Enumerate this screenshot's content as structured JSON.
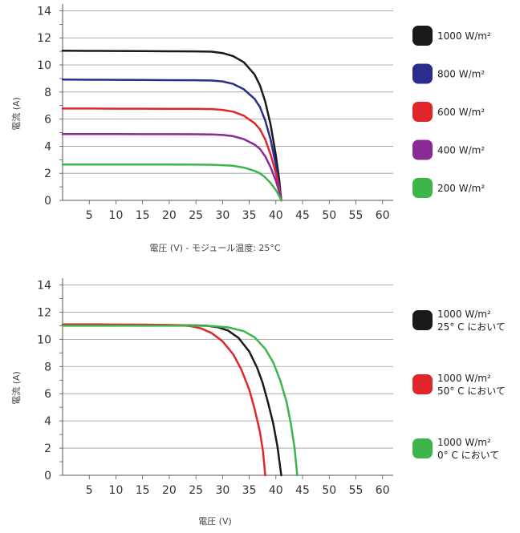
{
  "chart_data": [
    {
      "type": "line",
      "title": "",
      "xlabel": "電圧 (V) - モジュール温度: 25°C",
      "ylabel": "電流 (A)",
      "xlim": [
        0,
        62
      ],
      "ylim": [
        0,
        14.5
      ],
      "xticks": [
        5,
        10,
        15,
        20,
        25,
        30,
        35,
        40,
        45,
        50,
        55,
        60
      ],
      "yticks": [
        0,
        2,
        4,
        6,
        8,
        10,
        12,
        14
      ],
      "grid": "horizontal",
      "legend_position": "right",
      "series": [
        {
          "name": "1000 W/m²",
          "name_lines": [
            "1000 W/m²"
          ],
          "color": "#1a1a1a",
          "points": [
            [
              0,
              11.05
            ],
            [
              5,
              11.04
            ],
            [
              10,
              11.03
            ],
            [
              15,
              11.02
            ],
            [
              20,
              11.01
            ],
            [
              25,
              11.0
            ],
            [
              28,
              10.98
            ],
            [
              30,
              10.88
            ],
            [
              32,
              10.65
            ],
            [
              34,
              10.2
            ],
            [
              36,
              9.3
            ],
            [
              37,
              8.5
            ],
            [
              38,
              7.3
            ],
            [
              39,
              5.6
            ],
            [
              40,
              3.3
            ],
            [
              40.6,
              1.6
            ],
            [
              41,
              0
            ]
          ]
        },
        {
          "name": "800 W/m²",
          "name_lines": [
            "800 W/m²"
          ],
          "color": "#2a2d8a",
          "points": [
            [
              0,
              8.92
            ],
            [
              5,
              8.91
            ],
            [
              10,
              8.9
            ],
            [
              15,
              8.89
            ],
            [
              20,
              8.88
            ],
            [
              25,
              8.87
            ],
            [
              28,
              8.85
            ],
            [
              30,
              8.78
            ],
            [
              32,
              8.6
            ],
            [
              34,
              8.2
            ],
            [
              36,
              7.5
            ],
            [
              37,
              6.9
            ],
            [
              38,
              5.9
            ],
            [
              39,
              4.5
            ],
            [
              40,
              2.6
            ],
            [
              40.6,
              1.2
            ],
            [
              41,
              0
            ]
          ]
        },
        {
          "name": "600 W/m²",
          "name_lines": [
            "600 W/m²"
          ],
          "color": "#e0262b",
          "points": [
            [
              0,
              6.78
            ],
            [
              5,
              6.78
            ],
            [
              10,
              6.77
            ],
            [
              15,
              6.77
            ],
            [
              20,
              6.76
            ],
            [
              25,
              6.76
            ],
            [
              28,
              6.74
            ],
            [
              30,
              6.68
            ],
            [
              32,
              6.55
            ],
            [
              34,
              6.25
            ],
            [
              36,
              5.7
            ],
            [
              37,
              5.25
            ],
            [
              38,
              4.5
            ],
            [
              39,
              3.4
            ],
            [
              40,
              2.0
            ],
            [
              40.6,
              0.9
            ],
            [
              41,
              0
            ]
          ]
        },
        {
          "name": "400 W/m²",
          "name_lines": [
            "400 W/m²"
          ],
          "color": "#8a2a94",
          "points": [
            [
              0,
              4.9
            ],
            [
              5,
              4.9
            ],
            [
              10,
              4.9
            ],
            [
              15,
              4.89
            ],
            [
              20,
              4.89
            ],
            [
              25,
              4.88
            ],
            [
              28,
              4.87
            ],
            [
              30,
              4.83
            ],
            [
              32,
              4.74
            ],
            [
              34,
              4.52
            ],
            [
              36,
              4.12
            ],
            [
              37,
              3.8
            ],
            [
              38,
              3.25
            ],
            [
              39,
              2.45
            ],
            [
              40,
              1.45
            ],
            [
              40.6,
              0.65
            ],
            [
              41,
              0
            ]
          ]
        },
        {
          "name": "200 W/m²",
          "name_lines": [
            "200 W/m²"
          ],
          "color": "#3db54a",
          "points": [
            [
              0,
              2.65
            ],
            [
              5,
              2.65
            ],
            [
              10,
              2.65
            ],
            [
              15,
              2.65
            ],
            [
              20,
              2.65
            ],
            [
              25,
              2.64
            ],
            [
              28,
              2.63
            ],
            [
              30,
              2.6
            ],
            [
              32,
              2.55
            ],
            [
              34,
              2.42
            ],
            [
              36,
              2.18
            ],
            [
              37,
              2.0
            ],
            [
              38,
              1.7
            ],
            [
              39,
              1.28
            ],
            [
              40,
              0.75
            ],
            [
              40.6,
              0.33
            ],
            [
              41,
              0
            ]
          ]
        }
      ]
    },
    {
      "type": "line",
      "title": "",
      "xlabel": "電圧 (V)",
      "ylabel": "電流 (A)",
      "xlim": [
        0,
        62
      ],
      "ylim": [
        0,
        14.5
      ],
      "xticks": [
        5,
        10,
        15,
        20,
        25,
        30,
        35,
        40,
        45,
        50,
        55,
        60
      ],
      "yticks": [
        0,
        2,
        4,
        6,
        8,
        10,
        12,
        14
      ],
      "grid": "horizontal",
      "legend_position": "right",
      "series": [
        {
          "name": "1000 W/m² 25° C において",
          "name_lines": [
            "1000 W/m²",
            "25° C において"
          ],
          "color": "#1a1a1a",
          "points": [
            [
              0,
              11.05
            ],
            [
              5,
              11.05
            ],
            [
              10,
              11.04
            ],
            [
              15,
              11.04
            ],
            [
              20,
              11.03
            ],
            [
              25,
              11.02
            ],
            [
              27,
              11.0
            ],
            [
              29,
              10.9
            ],
            [
              31,
              10.65
            ],
            [
              33,
              10.1
            ],
            [
              35,
              9.1
            ],
            [
              36.5,
              7.9
            ],
            [
              37.5,
              6.8
            ],
            [
              38.5,
              5.4
            ],
            [
              39.5,
              3.8
            ],
            [
              40.3,
              2.1
            ],
            [
              41,
              0
            ]
          ]
        },
        {
          "name": "1000 W/m² 50° C において",
          "name_lines": [
            "1000 W/m²",
            "50° C において"
          ],
          "color": "#e0262b",
          "points": [
            [
              0,
              11.1
            ],
            [
              5,
              11.1
            ],
            [
              10,
              11.09
            ],
            [
              15,
              11.08
            ],
            [
              20,
              11.06
            ],
            [
              22,
              11.04
            ],
            [
              24,
              10.97
            ],
            [
              26,
              10.8
            ],
            [
              28,
              10.45
            ],
            [
              30,
              9.85
            ],
            [
              32,
              8.9
            ],
            [
              33.5,
              7.8
            ],
            [
              35,
              6.3
            ],
            [
              36,
              4.9
            ],
            [
              37,
              3.2
            ],
            [
              37.6,
              1.7
            ],
            [
              38,
              0
            ]
          ]
        },
        {
          "name": "1000 W/m² 0° C において",
          "name_lines": [
            "1000 W/m²",
            "0° C において"
          ],
          "color": "#3db54a",
          "points": [
            [
              0,
              11.0
            ],
            [
              5,
              11.0
            ],
            [
              10,
              11.0
            ],
            [
              15,
              11.0
            ],
            [
              20,
              11.0
            ],
            [
              25,
              11.0
            ],
            [
              28,
              10.98
            ],
            [
              31,
              10.88
            ],
            [
              34,
              10.6
            ],
            [
              36,
              10.15
            ],
            [
              38,
              9.3
            ],
            [
              39.5,
              8.3
            ],
            [
              40.8,
              7.0
            ],
            [
              42,
              5.4
            ],
            [
              42.8,
              3.8
            ],
            [
              43.5,
              2.0
            ],
            [
              44,
              0
            ]
          ]
        }
      ]
    }
  ]
}
